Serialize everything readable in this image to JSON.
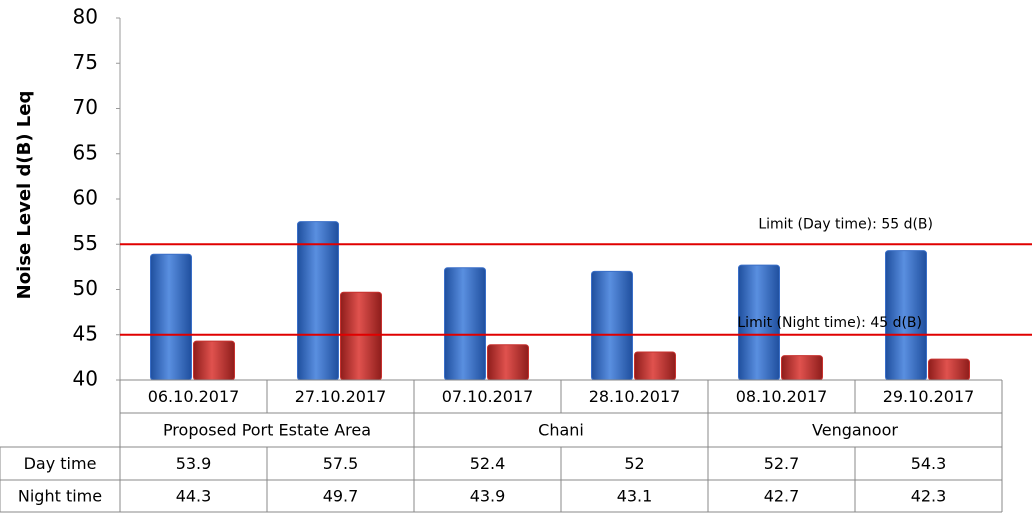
{
  "chart_data": {
    "type": "bar",
    "y_label": "Noise Level d(B) Leq",
    "categories": [
      "06.10.2017",
      "27.10.2017",
      "07.10.2017",
      "28.10.2017",
      "08.10.2017",
      "29.10.2017"
    ],
    "groups": [
      {
        "name": "Proposed Port Estate Area",
        "count": 2
      },
      {
        "name": "Chani",
        "count": 2
      },
      {
        "name": "Venganoor",
        "count": 2
      }
    ],
    "series": [
      {
        "name": "Day time",
        "color": "#3a6fc8",
        "values": [
          53.9,
          57.5,
          52.4,
          52,
          52.7,
          54.3
        ]
      },
      {
        "name": "Night time",
        "color": "#c8312e",
        "values": [
          44.3,
          49.7,
          43.9,
          43.1,
          42.7,
          42.3
        ]
      }
    ],
    "limits": [
      {
        "label": "Limit (Day time): 55 d(B)",
        "value": 55,
        "color": "#e00000"
      },
      {
        "label": "Limit (Night time): 45 d(B)",
        "value": 45,
        "color": "#e00000"
      }
    ],
    "ylim": [
      40,
      80
    ],
    "yticks": [
      40,
      45,
      50,
      55,
      60,
      65,
      70,
      75,
      80
    ]
  }
}
